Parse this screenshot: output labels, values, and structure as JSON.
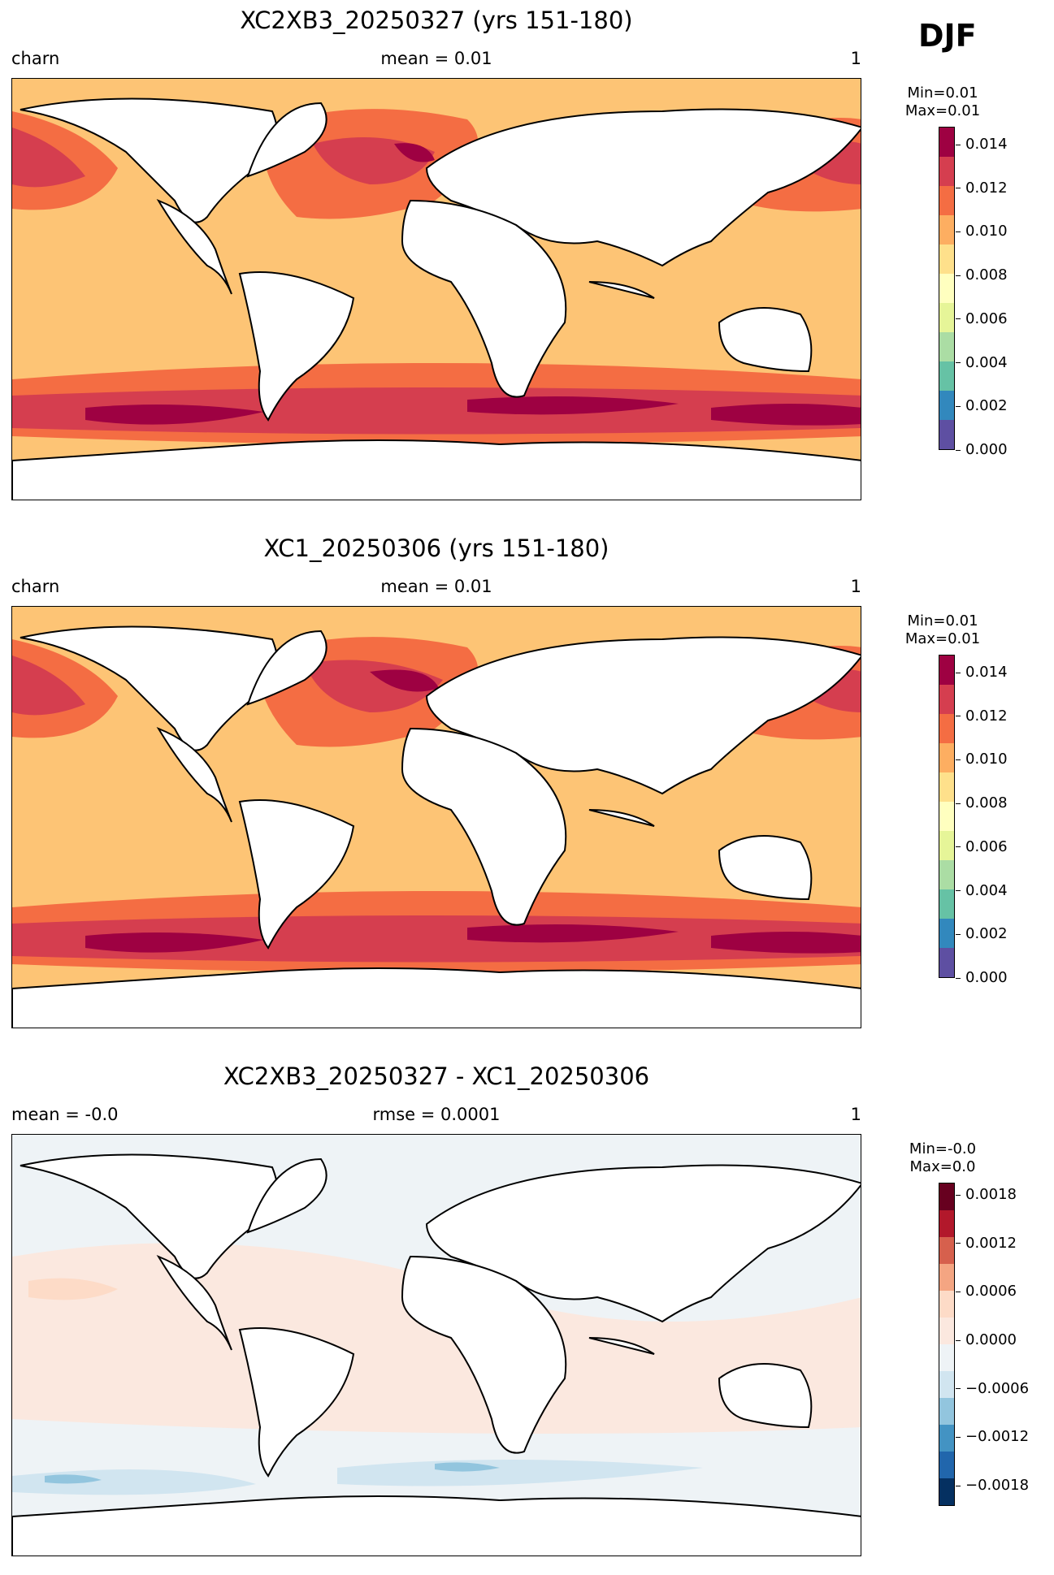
{
  "season": "DJF",
  "panels": [
    {
      "title": "XC2XB3_20250327 (yrs 151-180)",
      "left": "charn",
      "center": "mean = 0.01",
      "right": "1",
      "min": "Min=0.01",
      "max": "Max=0.01",
      "colorbar": {
        "colors": [
          "#5e4fa2",
          "#3288bd",
          "#66c2a5",
          "#abdda4",
          "#e6f598",
          "#ffffbf",
          "#fee08b",
          "#fdae61",
          "#f46d43",
          "#d53e4f",
          "#9e0142"
        ],
        "ticks": [
          "0.014",
          "0.012",
          "0.010",
          "0.008",
          "0.006",
          "0.004",
          "0.002",
          "0.000"
        ]
      }
    },
    {
      "title": "XC1_20250306 (yrs 151-180)",
      "left": "charn",
      "center": "mean = 0.01",
      "right": "1",
      "min": "Min=0.01",
      "max": "Max=0.01",
      "colorbar": {
        "colors": [
          "#5e4fa2",
          "#3288bd",
          "#66c2a5",
          "#abdda4",
          "#e6f598",
          "#ffffbf",
          "#fee08b",
          "#fdae61",
          "#f46d43",
          "#d53e4f",
          "#9e0142"
        ],
        "ticks": [
          "0.014",
          "0.012",
          "0.010",
          "0.008",
          "0.006",
          "0.004",
          "0.002",
          "0.000"
        ]
      }
    },
    {
      "title": "XC2XB3_20250327 - XC1_20250306",
      "left": "mean = -0.0",
      "center": "rmse = 0.0001",
      "right": "1",
      "min": "Min=-0.0",
      "max": "Max=0.0",
      "colorbar": {
        "colors": [
          "#053061",
          "#2166ac",
          "#4393c3",
          "#92c5de",
          "#d1e5f0",
          "#eef3f6",
          "#fbe8df",
          "#fddbc7",
          "#f4a582",
          "#d6604d",
          "#b2182b",
          "#67001f"
        ],
        "ticks": [
          "0.0018",
          "0.0012",
          "0.0006",
          "0.0000",
          "−0.0006",
          "−0.0012",
          "−0.0018"
        ]
      }
    }
  ]
}
